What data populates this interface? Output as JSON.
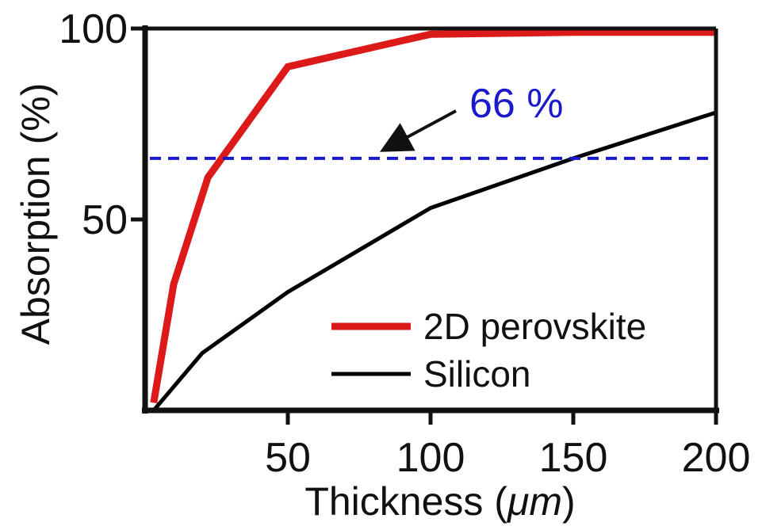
{
  "chart_data": {
    "type": "line",
    "xlabel_main": "Thickness (",
    "xlabel_unit": "μm",
    "xlabel_close": ")",
    "ylabel": "Absorption (%)",
    "xlim": [
      0,
      200
    ],
    "ylim": [
      0,
      100
    ],
    "x_ticks": [
      50,
      100,
      150,
      200
    ],
    "y_ticks": [
      50,
      100
    ],
    "grid": false,
    "legend_position": "bottom-right",
    "series": [
      {
        "name": "2D perovskite",
        "color": "#dd1a1a",
        "x": [
          3,
          10,
          22,
          50,
          100,
          150,
          200
        ],
        "y": [
          2,
          33,
          61,
          90,
          98.5,
          99,
          99
        ]
      },
      {
        "name": "Silicon",
        "color": "#000000",
        "x": [
          3,
          20,
          50,
          100,
          150,
          200
        ],
        "y": [
          0,
          15,
          31,
          53,
          66,
          78
        ]
      }
    ],
    "reference_line": {
      "y": 66,
      "color": "#1a1acc",
      "style": "dashed"
    },
    "annotation": {
      "text": "66 %",
      "color": "#1a1acc"
    }
  }
}
